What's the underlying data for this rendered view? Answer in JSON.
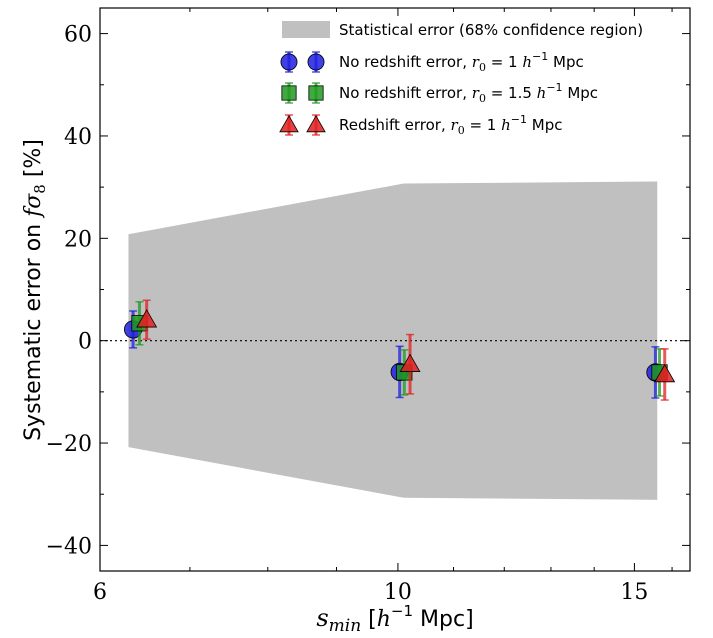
{
  "chart_data": {
    "type": "scatter",
    "xscale": "log",
    "xlim": [
      6,
      16.5
    ],
    "ylim": [
      -45,
      65
    ],
    "x_ticks": [
      6,
      10,
      15
    ],
    "x_tick_labels": [
      "6",
      "10",
      "15"
    ],
    "y_ticks": [
      -40,
      -20,
      0,
      20,
      40,
      60
    ],
    "y_tick_labels": [
      "−40",
      "−20",
      "0",
      "20",
      "40",
      "60"
    ],
    "xlabel": "s_min [h⁻¹ Mpc]",
    "xlabel_main": "s",
    "xlabel_sub": "min",
    "xlabel_bracket_open": " [",
    "xlabel_h": "h",
    "xlabel_sup": "−1",
    "xlabel_unit": " Mpc]",
    "ylabel": "Systematic error on fσ₈ [%]",
    "ylabel_prefix": "Systematic error on ",
    "ylabel_f": "f",
    "ylabel_sigma": "σ",
    "ylabel_sigma_sub": "8",
    "ylabel_suffix": " [%]",
    "grid": false,
    "legend_position": "top-right",
    "zero_line": 0,
    "band": {
      "name": "Statistical error (68% confidence region)",
      "color": "#c0c0c0",
      "x": [
        6.3,
        10.1,
        15.6
      ],
      "upper": [
        20.8,
        30.7,
        31.1
      ],
      "lower": [
        -20.8,
        -30.7,
        -31.1
      ]
    },
    "series": [
      {
        "name": "No redshift error, r₀ = 1 h⁻¹ Mpc",
        "label_prefix": "No redshift error, ",
        "label_r": "r",
        "label_r_sub": "0",
        "label_eq": " = 1 ",
        "label_h": "h",
        "label_sup": "−1",
        "label_unit": " Mpc",
        "marker": "circle",
        "color": "#1f1fe0",
        "x": [
          6.35,
          10.03,
          15.55
        ],
        "y": [
          2.2,
          -6.1,
          -6.2
        ],
        "err": [
          3.6,
          5.0,
          5.0
        ]
      },
      {
        "name": "No redshift error, r₀ = 1.5 h⁻¹ Mpc",
        "label_prefix": "No redshift error, ",
        "label_r": "r",
        "label_r_sub": "0",
        "label_eq": " = 1.5 ",
        "label_h": "h",
        "label_sup": "−1",
        "label_unit": " Mpc",
        "marker": "square",
        "color": "#1f9a1f",
        "x": [
          6.42,
          10.11,
          15.66
        ],
        "y": [
          3.4,
          -6.2,
          -6.2
        ],
        "err": [
          4.2,
          4.4,
          4.6
        ]
      },
      {
        "name": "Redshift error, r₀ = 1 h⁻¹ Mpc",
        "label_prefix": "Redshift error, ",
        "label_r": "r",
        "label_r_sub": "0",
        "label_eq": " = 1 ",
        "label_h": "h",
        "label_sup": "−1",
        "label_unit": " Mpc",
        "marker": "triangle",
        "color": "#e02020",
        "x": [
          6.5,
          10.21,
          15.8
        ],
        "y": [
          4.1,
          -4.6,
          -6.6
        ],
        "err": [
          3.8,
          5.8,
          5.0
        ]
      }
    ]
  }
}
